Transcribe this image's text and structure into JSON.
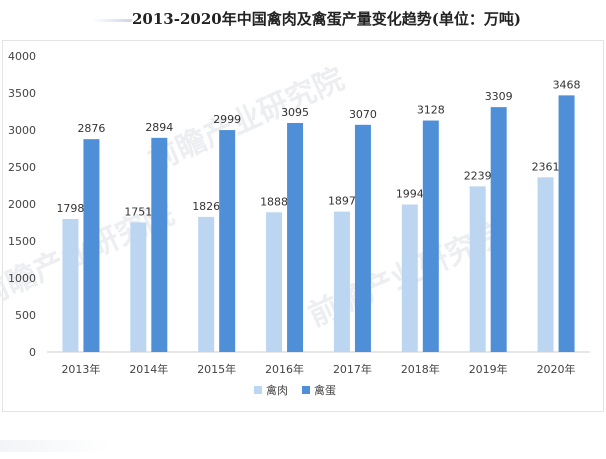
{
  "title": "2013-2020年中国禽肉及禽蛋产量变化趋势(单位：万吨)",
  "watermark_text": "前瞻产业研究院",
  "colors": {
    "series_meat": "#bcd6f2",
    "series_egg": "#4f8fd8",
    "axis": "#cccccc",
    "text": "#444444"
  },
  "chart_data": {
    "type": "bar",
    "title": "2013-2020年中国禽肉及禽蛋产量变化趋势(单位：万吨)",
    "categories": [
      "2013年",
      "2014年",
      "2015年",
      "2016年",
      "2017年",
      "2018年",
      "2019年",
      "2020年"
    ],
    "ylim": [
      0,
      4000
    ],
    "yticks": [
      0,
      500,
      1000,
      1500,
      2000,
      2500,
      3000,
      3500,
      4000
    ],
    "grid": false,
    "legend_position": "bottom",
    "series": [
      {
        "name": "禽肉",
        "values": [
          1798,
          1751,
          1826,
          1888,
          1897,
          1994,
          2239,
          2361
        ]
      },
      {
        "name": "禽蛋",
        "values": [
          2876,
          2894,
          2999,
          3095,
          3070,
          3128,
          3309,
          3468
        ]
      }
    ]
  }
}
